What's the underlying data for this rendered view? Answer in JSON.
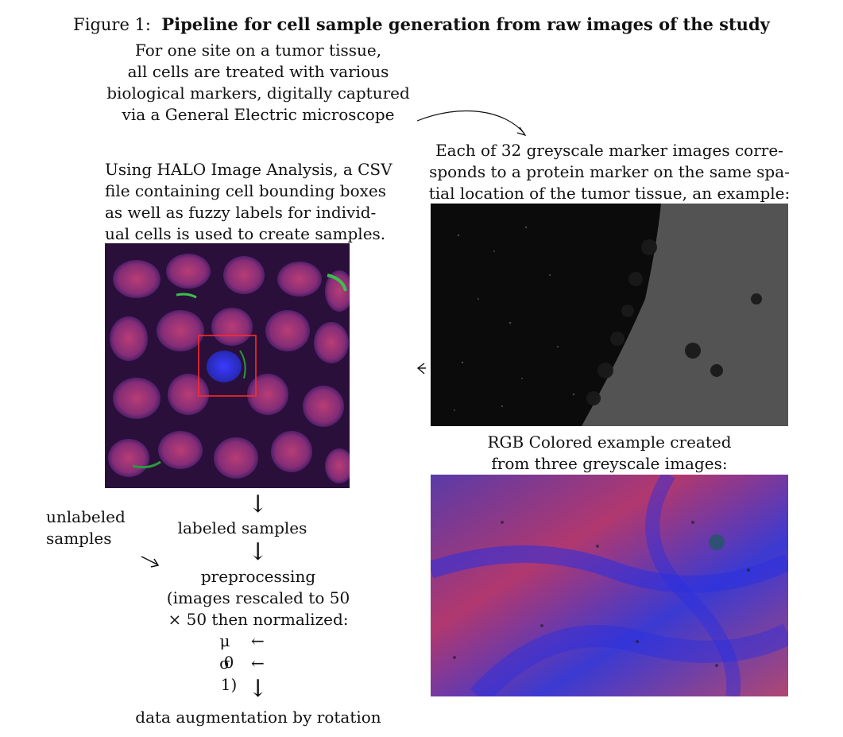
{
  "figure": {
    "label": "Figure 1:",
    "title": "Pipeline for cell sample generation from raw images of the study"
  },
  "intro": {
    "lines": [
      "For one site on a tumor tissue,",
      "all cells are treated with various",
      "biological markers, digitally captured",
      "via a General Electric microscope"
    ]
  },
  "halo": {
    "lines": [
      "Using HALO Image Analysis, a CSV",
      "file containing cell bounding boxes",
      "as well as fuzzy labels for individ-",
      "ual cells is used to create samples."
    ]
  },
  "greyscale": {
    "lines": [
      "Each of 32 greyscale marker images corre-",
      "sponds to a protein marker on the same spa-",
      "tial location of the tumor tissue, an example:"
    ]
  },
  "rgb": {
    "lines": [
      "RGB Colored example created",
      "from three greyscale images:"
    ]
  },
  "pipeline": {
    "unlabeled": [
      "unlabeled",
      "samples"
    ],
    "labeled": "labeled samples",
    "preprocessing": [
      "preprocessing",
      "(images rescaled to 50",
      "× 50 then normalized:"
    ],
    "mu_symbol": "μ",
    "mu_value": "0",
    "sigma_symbol": "σ",
    "sigma_value": "1)",
    "assign_arrow": "←",
    "augmentation": "data augmentation by rotation"
  },
  "colors": {
    "bbox": "#ff2a2a",
    "cell_bg": "#2a0f3a",
    "nucleus": "#b1386f",
    "marker": "#2a2fe0",
    "greyscale_bg": "#0b0b0b"
  }
}
